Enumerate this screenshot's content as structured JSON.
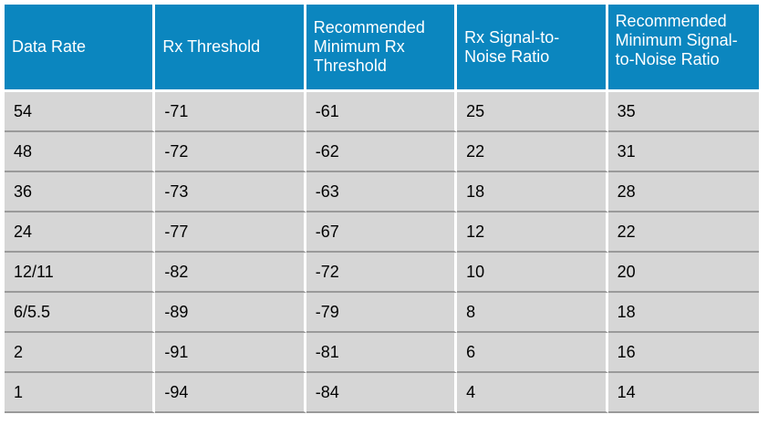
{
  "table": {
    "header": [
      "Data Rate",
      "Rx Threshold",
      "Recommended Minimum Rx Threshold",
      "Rx Signal-to-Noise Ratio",
      "Recommended Minimum Signal-to-Noise Ratio"
    ],
    "rows": [
      [
        "54",
        "-71",
        "-61",
        "25",
        "35"
      ],
      [
        "48",
        "-72",
        "-62",
        "22",
        "31"
      ],
      [
        "36",
        "-73",
        "-63",
        "18",
        "28"
      ],
      [
        "24",
        "-77",
        "-67",
        "12",
        "22"
      ],
      [
        "12/11",
        "-82",
        "-72",
        "10",
        "20"
      ],
      [
        "6/5.5",
        "-89",
        "-79",
        "8",
        "18"
      ],
      [
        "2",
        "-91",
        "-81",
        "6",
        "16"
      ],
      [
        "1",
        "-94",
        "-84",
        "4",
        "14"
      ]
    ]
  }
}
